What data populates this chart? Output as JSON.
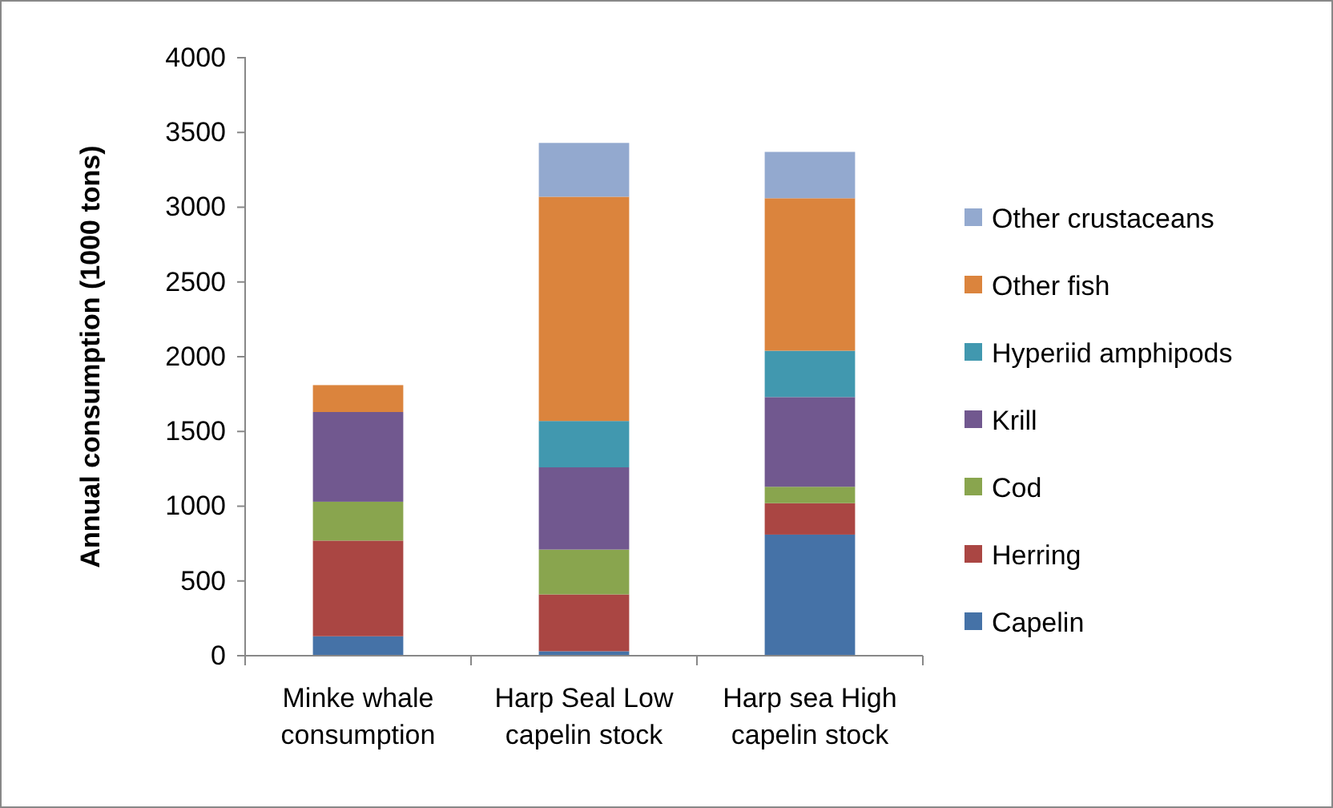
{
  "chart_data": {
    "type": "bar",
    "stacked": true,
    "ylabel": "Annual consumption (1000 tons)",
    "categories": [
      "Minke whale consumption",
      "Harp Seal Low capelin stock",
      "Harp sea High capelin stock"
    ],
    "series": [
      {
        "name": "Capelin",
        "color": "#4572a7",
        "values": [
          130,
          30,
          810
        ]
      },
      {
        "name": "Herring",
        "color": "#aa4643",
        "values": [
          640,
          380,
          210
        ]
      },
      {
        "name": "Cod",
        "color": "#89a54e",
        "values": [
          260,
          300,
          110
        ]
      },
      {
        "name": "Krill",
        "color": "#71588f",
        "values": [
          600,
          550,
          600
        ]
      },
      {
        "name": "Hyperiid amphipods",
        "color": "#4198af",
        "values": [
          0,
          310,
          310
        ]
      },
      {
        "name": "Other fish",
        "color": "#db843d",
        "values": [
          180,
          1500,
          1020
        ]
      },
      {
        "name": "Other crustaceans",
        "color": "#93a9cf",
        "values": [
          0,
          360,
          310
        ]
      }
    ],
    "ylim": [
      0,
      4000
    ],
    "yticks": [
      0,
      500,
      1000,
      1500,
      2000,
      2500,
      3000,
      3500,
      4000
    ],
    "grid": false,
    "legend": "right"
  }
}
